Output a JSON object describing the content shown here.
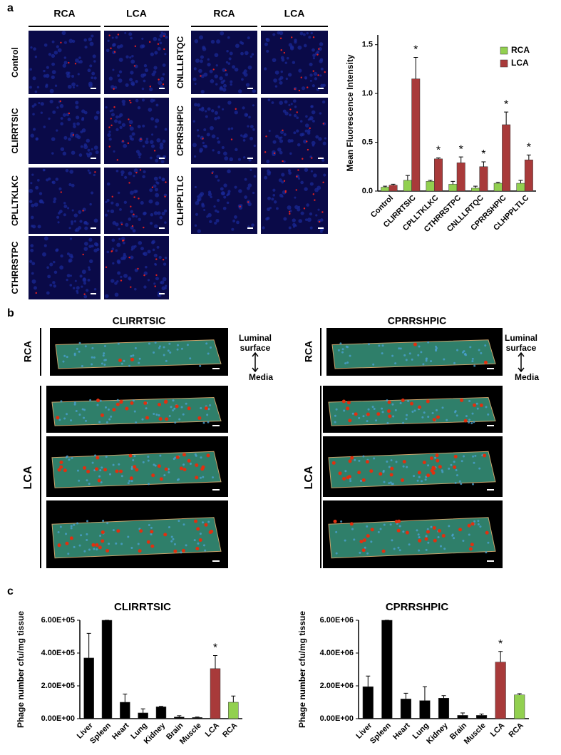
{
  "figure": {
    "panel_a": {
      "label": "a",
      "columns": [
        "RCA",
        "LCA",
        "RCA",
        "LCA"
      ],
      "rows_left": [
        "Control",
        "CLIRRTSIC",
        "CPLLTKLKC",
        "CTHRRSTPC"
      ],
      "rows_right": [
        "CNLLLRTQC",
        "CPRRSHPIC",
        "CLHPPLTLC"
      ]
    },
    "panel_b": {
      "label": "b",
      "groups": [
        {
          "title": "CLIRRTSIC",
          "rca": "RCA",
          "lca": "LCA",
          "luminal": "Luminal surface",
          "media": "Media"
        },
        {
          "title": "CPRRSHPIC",
          "rca": "RCA",
          "lca": "LCA",
          "luminal": "Luminal surface",
          "media": "Media"
        }
      ]
    },
    "panel_c": {
      "label": "c"
    }
  },
  "chart_data": [
    {
      "type": "bar",
      "y_label": "Mean Fluorescence Intensity",
      "categories": [
        "Control",
        "CLIRRTSIC",
        "CPLLTKLKC",
        "CTHRRSTPC",
        "CNLLLRTQC",
        "CPRRSHPIC",
        "CLHPPLTLC"
      ],
      "series": [
        {
          "name": "RCA",
          "color": "#92d050",
          "values": [
            0.04,
            0.11,
            0.1,
            0.07,
            0.03,
            0.08,
            0.08
          ],
          "errors": [
            0.01,
            0.05,
            0.01,
            0.03,
            0.02,
            0.01,
            0.03
          ]
        },
        {
          "name": "LCA",
          "color": "#a83a3a",
          "values": [
            0.06,
            1.15,
            0.33,
            0.29,
            0.25,
            0.68,
            0.32
          ],
          "errors": [
            0.01,
            0.22,
            0.01,
            0.06,
            0.05,
            0.13,
            0.05
          ],
          "annotations": [
            null,
            "*",
            "*",
            "*",
            "*",
            "*",
            "*"
          ]
        }
      ],
      "ylim": [
        0,
        1.6
      ],
      "yticks": [
        {
          "value": 0,
          "label": "0.0"
        },
        0.5,
        {
          "value": 1,
          "label": "1.0"
        },
        1.5
      ],
      "legend": "upper right"
    },
    {
      "type": "bar",
      "title": "CLIRRTSIC",
      "y_label": "Phage number cfu/mg tissue",
      "categories": [
        "Liver",
        "Spleen",
        "Heart",
        "Lung",
        "Kidney",
        "Brain",
        "Muscle",
        "LCA",
        "RCA"
      ],
      "series": [
        {
          "colors": [
            "#000000",
            "#000000",
            "#000000",
            "#000000",
            "#000000",
            "#000000",
            "#000000",
            "#a83a3a",
            "#92d050"
          ],
          "values": [
            370000,
            600000,
            100000,
            35000,
            72000,
            10000,
            7000,
            305000,
            100000
          ],
          "errors": [
            150000,
            0,
            50000,
            25000,
            3000,
            8000,
            3000,
            80000,
            38000
          ],
          "annotations": [
            null,
            null,
            null,
            null,
            null,
            null,
            null,
            "*",
            null
          ]
        }
      ],
      "ylim": [
        0,
        600000
      ],
      "yticks": [
        {
          "value": 0,
          "label": "0.00E+00"
        },
        {
          "value": 200000,
          "label": "2.00E+05"
        },
        {
          "value": 400000,
          "label": "4.00E+05"
        },
        {
          "value": 600000,
          "label": "6.00E+05"
        }
      ]
    },
    {
      "type": "bar",
      "title": "CPRRSHPIC",
      "y_label": "Phage number cfu/mg tissue",
      "categories": [
        "Liver",
        "Spleen",
        "Heart",
        "Lung",
        "Kidney",
        "Brain",
        "Muscle",
        "LCA",
        "RCA"
      ],
      "series": [
        {
          "colors": [
            "#000000",
            "#000000",
            "#000000",
            "#000000",
            "#000000",
            "#000000",
            "#000000",
            "#a83a3a",
            "#92d050"
          ],
          "values": [
            1950000,
            6000000,
            1200000,
            1100000,
            1250000,
            200000,
            200000,
            3450000,
            1450000
          ],
          "errors": [
            650000,
            0,
            350000,
            850000,
            150000,
            150000,
            80000,
            650000,
            70000
          ],
          "annotations": [
            null,
            null,
            null,
            null,
            null,
            null,
            null,
            "*",
            null
          ]
        }
      ],
      "ylim": [
        0,
        6000000
      ],
      "yticks": [
        {
          "value": 0,
          "label": "0.00E+00"
        },
        {
          "value": 2000000,
          "label": "2.00E+06"
        },
        {
          "value": 4000000,
          "label": "4.00E+06"
        },
        {
          "value": 6000000,
          "label": "6.00E+06"
        }
      ]
    }
  ]
}
